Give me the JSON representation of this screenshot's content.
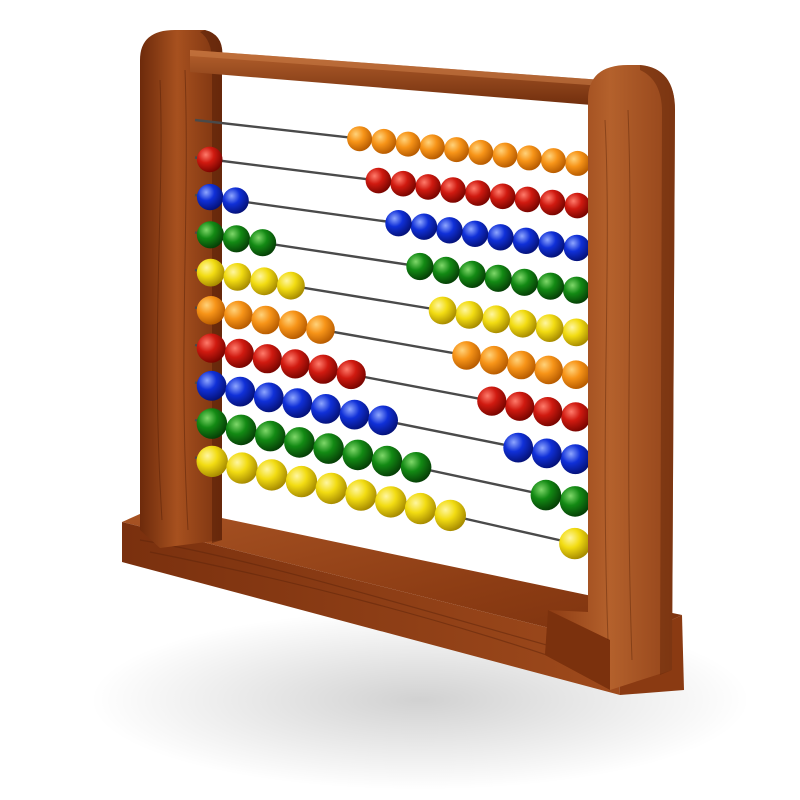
{
  "scene": {
    "subject": "abacus-toy",
    "background": "#ffffff",
    "wood": {
      "light": "#b7612c",
      "mid": "#8f3f17",
      "dark": "#5a2208",
      "edge": "#6b2a0c"
    },
    "rod_color": "#4a4a4a"
  },
  "rows": [
    {
      "color": "orange",
      "left_beads": 0,
      "right_beads": 10
    },
    {
      "color": "red",
      "left_beads": 1,
      "right_beads": 9
    },
    {
      "color": "blue",
      "left_beads": 2,
      "right_beads": 8
    },
    {
      "color": "green",
      "left_beads": 3,
      "right_beads": 7
    },
    {
      "color": "yellow",
      "left_beads": 4,
      "right_beads": 6
    },
    {
      "color": "orange",
      "left_beads": 5,
      "right_beads": 5
    },
    {
      "color": "red",
      "left_beads": 6,
      "right_beads": 4
    },
    {
      "color": "blue",
      "left_beads": 7,
      "right_beads": 3
    },
    {
      "color": "green",
      "left_beads": 8,
      "right_beads": 2
    },
    {
      "color": "yellow",
      "left_beads": 9,
      "right_beads": 1
    }
  ],
  "bead_colors": {
    "orange": {
      "light": "#ffd27a",
      "base": "#f79418",
      "dark": "#b85c00"
    },
    "red": {
      "light": "#ff7b6b",
      "base": "#d01a10",
      "dark": "#7a0500"
    },
    "blue": {
      "light": "#8ea6ff",
      "base": "#1030d8",
      "dark": "#05127a"
    },
    "green": {
      "light": "#7fd86a",
      "base": "#138a14",
      "dark": "#064006"
    },
    "yellow": {
      "light": "#fff6a0",
      "base": "#f2dc12",
      "dark": "#a88c00"
    }
  }
}
